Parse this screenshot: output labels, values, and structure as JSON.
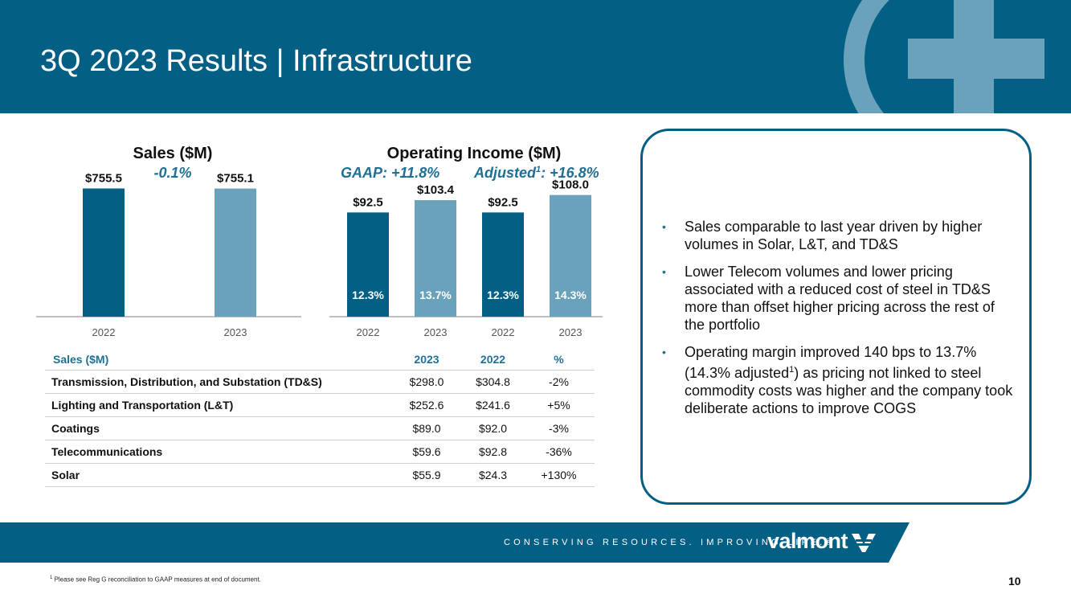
{
  "header": {
    "title": "3Q 2023 Results | Infrastructure"
  },
  "colors": {
    "dark_bar": "#045f84",
    "light_bar": "#6aa2bb",
    "accent": "#1f6f95"
  },
  "sales_chart": {
    "title": "Sales ($M)",
    "subtitle": "-0.1%"
  },
  "opinc_chart": {
    "title": "Operating Income ($M)",
    "gaap_label": "GAAP: +11.8%",
    "adjusted_prefix": "Adjusted",
    "adjusted_sup": "1",
    "adjusted_suffix": ": +16.8%"
  },
  "chart_data": [
    {
      "type": "bar",
      "title": "Sales ($M)",
      "subtitle": "-0.1%",
      "categories": [
        "2022",
        "2023"
      ],
      "values": [
        755.5,
        755.1
      ],
      "value_labels": [
        "$755.5",
        "$755.1"
      ],
      "bar_colors": [
        "#045f84",
        "#6aa2bb"
      ],
      "ylim": [
        0,
        900
      ],
      "grid": false
    },
    {
      "type": "bar",
      "title": "Operating Income ($M)",
      "categories": [
        "2022",
        "2023",
        "2022",
        "2023"
      ],
      "values": [
        92.5,
        103.4,
        92.5,
        108.0
      ],
      "value_labels": [
        "$92.5",
        "$103.4",
        "$92.5",
        "$108.0"
      ],
      "margin_labels": [
        "12.3%",
        "13.7%",
        "12.3%",
        "14.3%"
      ],
      "bar_colors": [
        "#045f84",
        "#6aa2bb",
        "#045f84",
        "#6aa2bb"
      ],
      "ylim": [
        0,
        117
      ],
      "grid": false
    }
  ],
  "table": {
    "headers": [
      "Sales ($M)",
      "2023",
      "2022",
      "%"
    ],
    "rows": [
      [
        "Transmission, Distribution, and Substation (TD&S)",
        "$298.0",
        "$304.8",
        "-2%"
      ],
      [
        "Lighting and Transportation (L&T)",
        "$252.6",
        "$241.6",
        "+5%"
      ],
      [
        "Coatings",
        "$89.0",
        "$92.0",
        "-3%"
      ],
      [
        "Telecommunications",
        "$59.6",
        "$92.8",
        "-36%"
      ],
      [
        "Solar",
        "$55.9",
        "$24.3",
        "+130%"
      ]
    ]
  },
  "summary": {
    "bullet_glyph": "•",
    "b1": "Sales comparable to last year driven by higher volumes in Solar, L&T, and TD&S",
    "b2": "Lower Telecom volumes and lower pricing associated with a reduced cost of steel in TD&S more than offset higher pricing across the rest of the portfolio",
    "b3_pre": "Operating margin improved 140 bps to 13.7% (14.3% adjusted",
    "b3_sup": "1",
    "b3_post": ") as pricing not linked to steel commodity costs was higher and the company took deliberate actions to improve COGS"
  },
  "footer": {
    "tagline": "CONSERVING RESOURCES. IMPROVING LIFE.®",
    "brand": "valmont",
    "footnote_sup": "1",
    "footnote": " Please see Reg G reconciliation to GAAP measures at end of document.",
    "page_number": "10"
  },
  "icons": {
    "header_logo": "valmont-circle-plus-icon",
    "brand_mark": "valmont-v-icon"
  }
}
